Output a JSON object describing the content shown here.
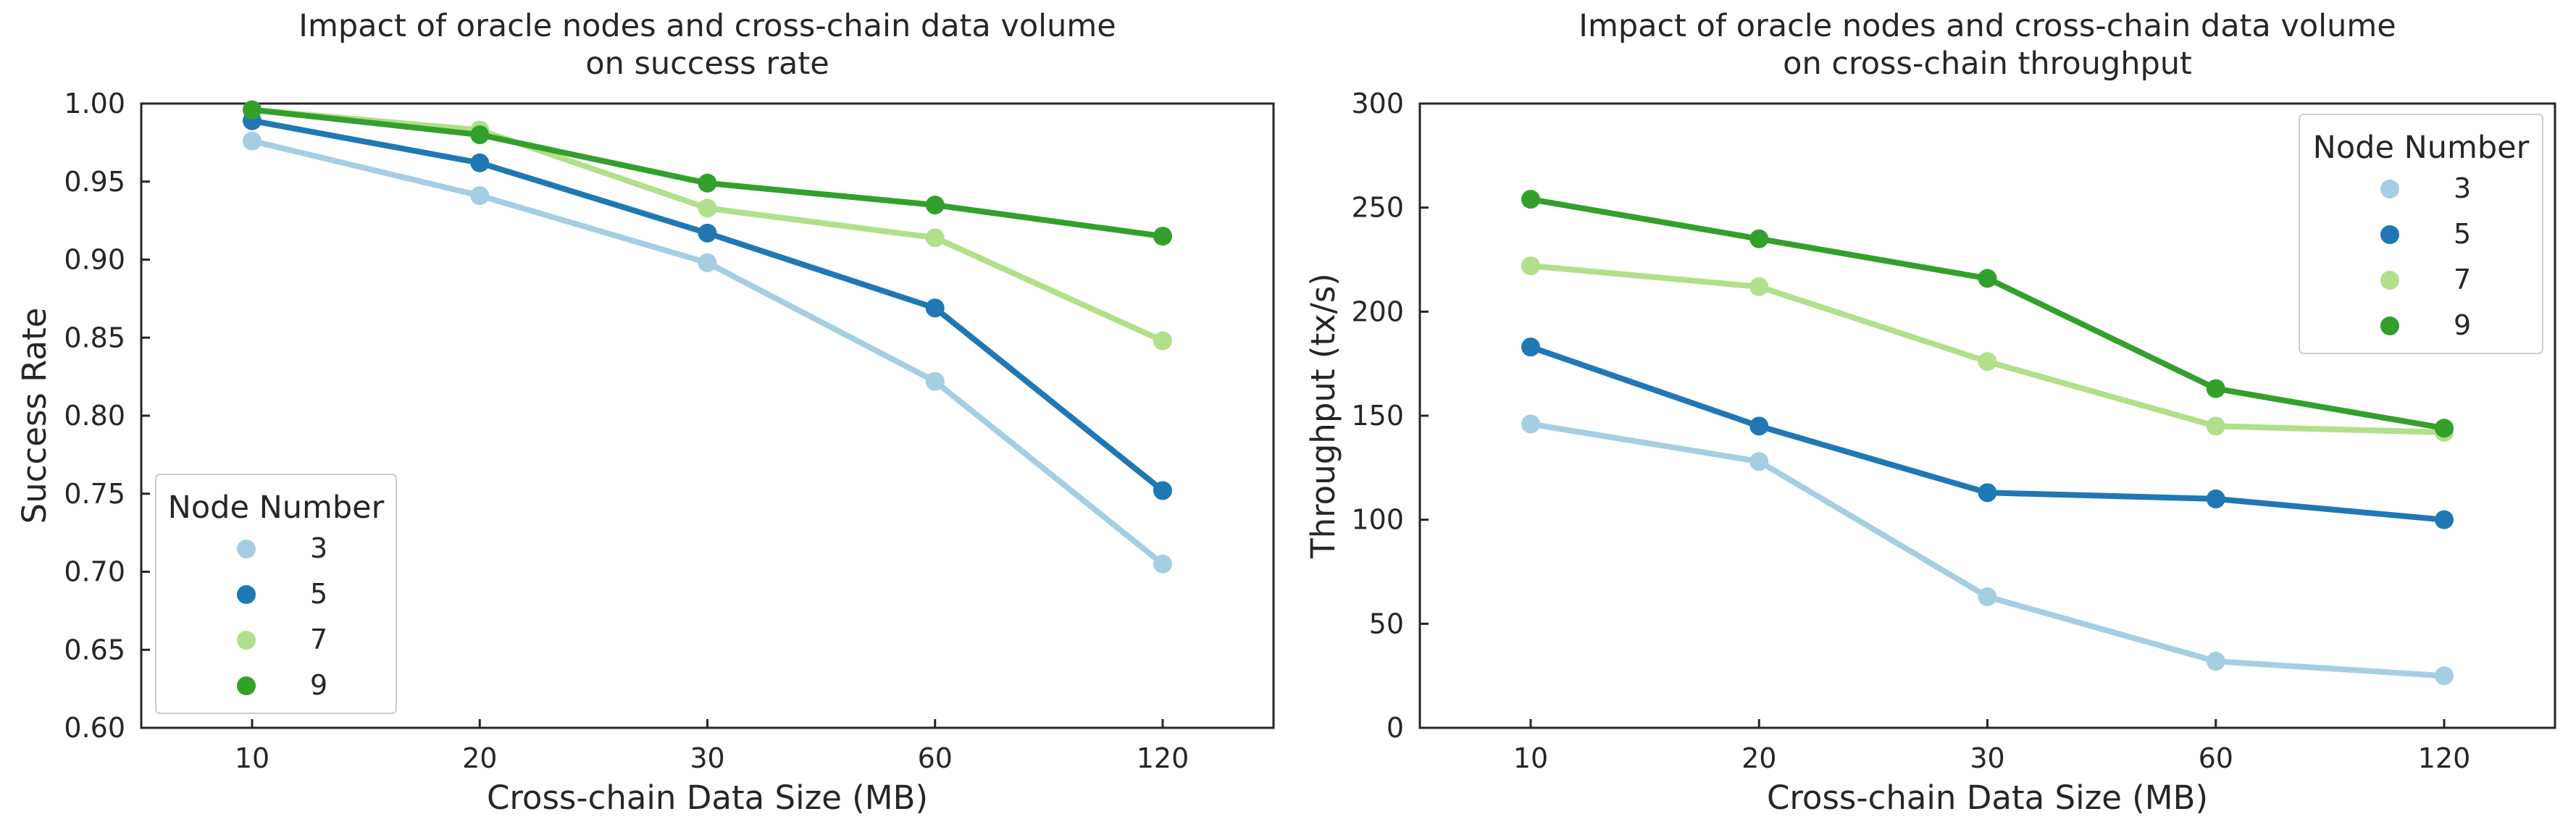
{
  "chart_data": [
    {
      "type": "line",
      "title_lines": [
        "Impact of oracle nodes and cross-chain data volume",
        "on success rate"
      ],
      "xlabel": "Cross-chain Data Size (MB)",
      "ylabel": "Success Rate",
      "categories": [
        "10",
        "20",
        "30",
        "60",
        "120"
      ],
      "ylim": [
        0.6,
        1.0
      ],
      "yticks": [
        "0.60",
        "0.65",
        "0.70",
        "0.75",
        "0.80",
        "0.85",
        "0.90",
        "0.95",
        "1.00"
      ],
      "grid": false,
      "legend": {
        "title": "Node Number",
        "placement": "lower-left"
      },
      "series": [
        {
          "name": "3",
          "color": "#a6cee3",
          "values": [
            0.976,
            0.941,
            0.898,
            0.822,
            0.705
          ]
        },
        {
          "name": "5",
          "color": "#1f78b4",
          "values": [
            0.989,
            0.962,
            0.917,
            0.869,
            0.752
          ]
        },
        {
          "name": "7",
          "color": "#b2df8a",
          "values": [
            0.996,
            0.983,
            0.933,
            0.914,
            0.848
          ]
        },
        {
          "name": "9",
          "color": "#33a02c",
          "values": [
            0.996,
            0.98,
            0.949,
            0.935,
            0.915
          ]
        }
      ]
    },
    {
      "type": "line",
      "title_lines": [
        "Impact of oracle nodes and cross-chain data volume",
        "on cross-chain throughput"
      ],
      "xlabel": "Cross-chain Data Size (MB)",
      "ylabel": "Throughput (tx/s)",
      "categories": [
        "10",
        "20",
        "30",
        "60",
        "120"
      ],
      "ylim": [
        0,
        300
      ],
      "yticks": [
        "0",
        "50",
        "100",
        "150",
        "200",
        "250",
        "300"
      ],
      "grid": false,
      "legend": {
        "title": "Node Number",
        "placement": "upper-right"
      },
      "series": [
        {
          "name": "3",
          "color": "#a6cee3",
          "values": [
            146,
            128,
            63,
            32,
            25
          ]
        },
        {
          "name": "5",
          "color": "#1f78b4",
          "values": [
            183,
            145,
            113,
            110,
            100
          ]
        },
        {
          "name": "7",
          "color": "#b2df8a",
          "values": [
            222,
            212,
            176,
            145,
            142
          ]
        },
        {
          "name": "9",
          "color": "#33a02c",
          "values": [
            254,
            235,
            216,
            163,
            144
          ]
        }
      ]
    }
  ]
}
